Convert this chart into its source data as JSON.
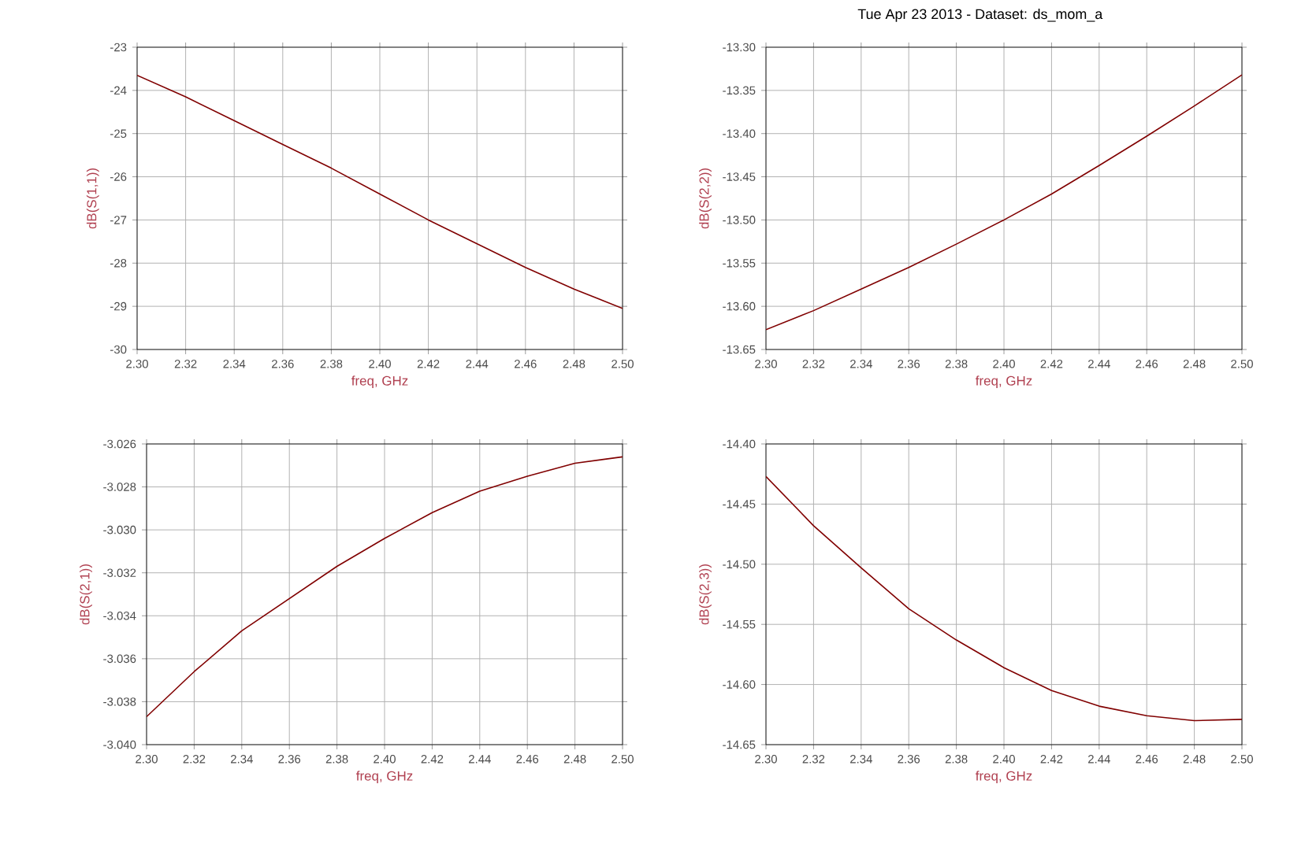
{
  "chart_data": [
    {
      "type": "line",
      "xlabel": "freq, GHz",
      "ylabel": "dB(S(1,1))",
      "grid": true,
      "x": [
        2.3,
        2.32,
        2.34,
        2.36,
        2.38,
        2.4,
        2.42,
        2.44,
        2.46,
        2.48,
        2.5
      ],
      "series": [
        {
          "color": "#800000",
          "values": [
            -23.65,
            -24.15,
            -24.7,
            -25.25,
            -25.8,
            -26.4,
            -27.0,
            -27.55,
            -28.1,
            -28.6,
            -29.05
          ]
        }
      ],
      "xlim": [
        2.3,
        2.5
      ],
      "ylim": [
        -30,
        -23
      ],
      "xticks": [
        {
          "value": 2.3,
          "label": "2.30"
        },
        {
          "value": 2.32,
          "label": "2.32"
        },
        {
          "value": 2.34,
          "label": "2.34"
        },
        {
          "value": 2.36,
          "label": "2.36"
        },
        {
          "value": 2.38,
          "label": "2.38"
        },
        {
          "value": 2.4,
          "label": "2.40"
        },
        {
          "value": 2.42,
          "label": "2.42"
        },
        {
          "value": 2.44,
          "label": "2.44"
        },
        {
          "value": 2.46,
          "label": "2.46"
        },
        {
          "value": 2.48,
          "label": "2.48"
        },
        {
          "value": 2.5,
          "label": "2.50"
        }
      ],
      "yticks": [
        -30,
        -29,
        -28,
        -27,
        -26,
        -25,
        -24,
        -23
      ]
    },
    {
      "type": "line",
      "xlabel": "freq, GHz",
      "ylabel": "dB(S(2,2))",
      "grid": true,
      "annotations": [
        "Tue Apr 23 2013 - Dataset: ds_mom_a"
      ],
      "x": [
        2.3,
        2.32,
        2.34,
        2.36,
        2.38,
        2.4,
        2.42,
        2.44,
        2.46,
        2.48,
        2.5
      ],
      "series": [
        {
          "color": "#800000",
          "values": [
            -13.627,
            -13.605,
            -13.58,
            -13.555,
            -13.528,
            -13.5,
            -13.47,
            -13.437,
            -13.403,
            -13.368,
            -13.332
          ]
        }
      ],
      "xlim": [
        2.3,
        2.5
      ],
      "ylim": [
        -13.65,
        -13.3
      ],
      "xticks": [
        {
          "value": 2.3,
          "label": "2.30"
        },
        {
          "value": 2.32,
          "label": "2.32"
        },
        {
          "value": 2.34,
          "label": "2.34"
        },
        {
          "value": 2.36,
          "label": "2.36"
        },
        {
          "value": 2.38,
          "label": "2.38"
        },
        {
          "value": 2.4,
          "label": "2.40"
        },
        {
          "value": 2.42,
          "label": "2.42"
        },
        {
          "value": 2.44,
          "label": "2.44"
        },
        {
          "value": 2.46,
          "label": "2.46"
        },
        {
          "value": 2.48,
          "label": "2.48"
        },
        {
          "value": 2.5,
          "label": "2.50"
        }
      ],
      "yticks": [
        {
          "value": -13.65,
          "label": "-13.65"
        },
        {
          "value": -13.6,
          "label": "-13.60"
        },
        {
          "value": -13.55,
          "label": "-13.55"
        },
        {
          "value": -13.5,
          "label": "-13.50"
        },
        {
          "value": -13.45,
          "label": "-13.45"
        },
        {
          "value": -13.4,
          "label": "-13.40"
        },
        {
          "value": -13.35,
          "label": "-13.35"
        },
        {
          "value": -13.3,
          "label": "-13.30"
        }
      ]
    },
    {
      "type": "line",
      "xlabel": "freq, GHz",
      "ylabel": "dB(S(2,1))",
      "grid": true,
      "x": [
        2.3,
        2.32,
        2.34,
        2.36,
        2.38,
        2.4,
        2.42,
        2.44,
        2.46,
        2.48,
        2.5
      ],
      "series": [
        {
          "color": "#800000",
          "values": [
            -3.0387,
            -3.0366,
            -3.0347,
            -3.0332,
            -3.0317,
            -3.0304,
            -3.0292,
            -3.0282,
            -3.0275,
            -3.0269,
            -3.0266
          ]
        }
      ],
      "xlim": [
        2.3,
        2.5
      ],
      "ylim": [
        -3.04,
        -3.026
      ],
      "xticks": [
        {
          "value": 2.3,
          "label": "2.30"
        },
        {
          "value": 2.32,
          "label": "2.32"
        },
        {
          "value": 2.34,
          "label": "2.34"
        },
        {
          "value": 2.36,
          "label": "2.36"
        },
        {
          "value": 2.38,
          "label": "2.38"
        },
        {
          "value": 2.4,
          "label": "2.40"
        },
        {
          "value": 2.42,
          "label": "2.42"
        },
        {
          "value": 2.44,
          "label": "2.44"
        },
        {
          "value": 2.46,
          "label": "2.46"
        },
        {
          "value": 2.48,
          "label": "2.48"
        },
        {
          "value": 2.5,
          "label": "2.50"
        }
      ],
      "yticks": [
        {
          "value": -3.04,
          "label": "-3.040"
        },
        {
          "value": -3.038,
          "label": "-3.038"
        },
        {
          "value": -3.036,
          "label": "-3.036"
        },
        {
          "value": -3.034,
          "label": "-3.034"
        },
        {
          "value": -3.032,
          "label": "-3.032"
        },
        {
          "value": -3.03,
          "label": "-3.030"
        },
        {
          "value": -3.028,
          "label": "-3.028"
        },
        {
          "value": -3.026,
          "label": "-3.026"
        }
      ]
    },
    {
      "type": "line",
      "xlabel": "freq, GHz",
      "ylabel": "dB(S(2,3))",
      "grid": true,
      "x": [
        2.3,
        2.32,
        2.34,
        2.36,
        2.38,
        2.4,
        2.42,
        2.44,
        2.46,
        2.48,
        2.5
      ],
      "series": [
        {
          "color": "#800000",
          "values": [
            -14.427,
            -14.468,
            -14.503,
            -14.537,
            -14.563,
            -14.586,
            -14.605,
            -14.618,
            -14.626,
            -14.63,
            -14.629
          ]
        }
      ],
      "xlim": [
        2.3,
        2.5
      ],
      "ylim": [
        -14.65,
        -14.4
      ],
      "xticks": [
        {
          "value": 2.3,
          "label": "2.30"
        },
        {
          "value": 2.32,
          "label": "2.32"
        },
        {
          "value": 2.34,
          "label": "2.34"
        },
        {
          "value": 2.36,
          "label": "2.36"
        },
        {
          "value": 2.38,
          "label": "2.38"
        },
        {
          "value": 2.4,
          "label": "2.40"
        },
        {
          "value": 2.42,
          "label": "2.42"
        },
        {
          "value": 2.44,
          "label": "2.44"
        },
        {
          "value": 2.46,
          "label": "2.46"
        },
        {
          "value": 2.48,
          "label": "2.48"
        },
        {
          "value": 2.5,
          "label": "2.50"
        }
      ],
      "yticks": [
        {
          "value": -14.65,
          "label": "-14.65"
        },
        {
          "value": -14.6,
          "label": "-14.60"
        },
        {
          "value": -14.55,
          "label": "-14.55"
        },
        {
          "value": -14.5,
          "label": "-14.50"
        },
        {
          "value": -14.45,
          "label": "-14.45"
        },
        {
          "value": -14.4,
          "label": "-14.40"
        }
      ]
    }
  ]
}
